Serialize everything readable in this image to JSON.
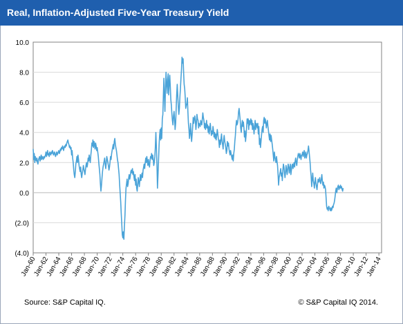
{
  "title": "Real, Inflation-Adjusted  Five-Year Treasury Yield",
  "source": "Source: S&P Capital IQ.",
  "copyright": "© S&P Capital IQ  2014.",
  "colors": {
    "title_bg": "#1f5fae",
    "line": "#4aa3d8",
    "grid": "#d9d9d9",
    "axis": "#808080"
  },
  "chart_data": {
    "type": "line",
    "title": "Real, Inflation-Adjusted  Five-Year Treasury Yield",
    "xlabel": "",
    "ylabel": "",
    "ylim": [
      -4,
      10
    ],
    "xlim": [
      "Jan-60",
      "Jun-14"
    ],
    "grid": true,
    "legend": "none",
    "y_ticks": [
      "10.0",
      "8.0",
      "6.0",
      "4.0",
      "2.0",
      "0.0",
      "(2.0)",
      "(4.0)"
    ],
    "x_ticks": [
      "Jan-60",
      "Jan-62",
      "Jan-64",
      "Jan-66",
      "Jan-68",
      "Jan-70",
      "Jan-72",
      "Jan-74",
      "Jan-76",
      "Jan-78",
      "Jan-80",
      "Jan-82",
      "Jan-84",
      "Jan-86",
      "Jan-88",
      "Jan-90",
      "Jan-92",
      "Jan-94",
      "Jan-96",
      "Jan-98",
      "Jan-00",
      "Jan-02",
      "Jan-04",
      "Jan-06",
      "Jan-08",
      "Jan-10",
      "Jan-12",
      "Jan-14"
    ],
    "series": [
      {
        "values_from": "Jan-60",
        "step": "month",
        "values": [
          2.9,
          2.2,
          2.6,
          2.0,
          2.4,
          2.2,
          2.1,
          2.3,
          2.0,
          1.9,
          2.2,
          2.3,
          2.4,
          2.1,
          2.3,
          2.5,
          2.2,
          2.4,
          2.3,
          2.2,
          2.4,
          2.3,
          2.4,
          2.5,
          2.7,
          2.4,
          2.6,
          2.8,
          2.5,
          2.6,
          2.4,
          2.7,
          2.6,
          2.5,
          2.7,
          2.6,
          2.8,
          2.7,
          2.5,
          2.6,
          2.7,
          2.5,
          2.4,
          2.6,
          2.7,
          2.5,
          2.6,
          2.7,
          2.8,
          2.6,
          2.7,
          2.9,
          2.8,
          3.0,
          2.9,
          3.1,
          3.0,
          2.8,
          3.0,
          3.1,
          3.0,
          3.2,
          3.1,
          3.3,
          3.4,
          3.5,
          3.3,
          3.2,
          3.0,
          3.1,
          2.9,
          3.0,
          2.5,
          2.8,
          2.3,
          2.0,
          1.5,
          1.2,
          1.0,
          1.4,
          1.9,
          2.1,
          2.4,
          2.0,
          2.5,
          2.2,
          1.8,
          1.6,
          1.4,
          1.7,
          1.2,
          1.0,
          1.3,
          1.5,
          1.8,
          1.6,
          1.4,
          1.2,
          1.5,
          1.8,
          2.0,
          1.7,
          1.9,
          2.3,
          2.1,
          2.5,
          2.2,
          2.0,
          2.5,
          2.8,
          3.3,
          3.1,
          3.5,
          3.0,
          3.4,
          3.2,
          2.9,
          3.3,
          3.1,
          2.8,
          3.0,
          2.7,
          2.4,
          2.0,
          1.6,
          1.2,
          0.6,
          0.1,
          0.5,
          1.0,
          1.4,
          1.7,
          1.9,
          2.1,
          2.3,
          1.9,
          1.6,
          2.0,
          2.4,
          2.2,
          2.0,
          1.8,
          1.5,
          1.7,
          2.0,
          2.4,
          2.2,
          2.6,
          2.8,
          3.0,
          3.2,
          2.9,
          3.4,
          3.6,
          3.2,
          3.0,
          2.8,
          2.5,
          2.2,
          2.0,
          1.6,
          1.2,
          0.6,
          0.0,
          -0.6,
          -1.4,
          -2.0,
          -2.8,
          -3.0,
          -2.6,
          -3.1,
          -2.2,
          -1.5,
          -0.5,
          0.3,
          0.6,
          0.9,
          0.4,
          0.6,
          1.0,
          1.2,
          0.9,
          1.1,
          1.4,
          1.5,
          1.3,
          1.6,
          1.2,
          1.4,
          1.0,
          0.8,
          1.2,
          0.5,
          0.9,
          0.3,
          0.1,
          0.6,
          1.0,
          0.7,
          0.4,
          0.9,
          1.2,
          0.8,
          1.1,
          1.3,
          1.0,
          1.5,
          1.7,
          1.9,
          1.6,
          2.0,
          2.3,
          2.0,
          2.4,
          2.1,
          1.8,
          2.2,
          1.9,
          1.7,
          2.1,
          2.4,
          2.3,
          2.6,
          2.2,
          2.5,
          2.2,
          1.8,
          2.0,
          2.4,
          3.0,
          4.0,
          3.0,
          1.8,
          0.3,
          1.2,
          2.2,
          3.2,
          3.8,
          4.2,
          3.5,
          4.3,
          3.6,
          4.9,
          5.2,
          6.4,
          7.6,
          6.3,
          5.4,
          7.0,
          8.0,
          7.1,
          6.6,
          7.5,
          7.9,
          6.5,
          7.2,
          7.8,
          7.0,
          6.2,
          5.8,
          5.2,
          4.8,
          4.5,
          5.1,
          5.4,
          4.9,
          4.2,
          4.6,
          5.5,
          6.5,
          7.2,
          6.4,
          5.8,
          5.2,
          5.6,
          6.4,
          6.9,
          7.6,
          8.2,
          9.0,
          8.6,
          8.9,
          7.9,
          7.2,
          6.9,
          6.3,
          5.6,
          5.8,
          5.9,
          6.3,
          5.4,
          4.6,
          4.2,
          3.6,
          4.0,
          4.6,
          3.8,
          3.4,
          3.9,
          4.4,
          5.0,
          4.6,
          4.9,
          5.1,
          4.8,
          4.2,
          4.6,
          5.2,
          4.9,
          4.8,
          4.3,
          4.6,
          4.5,
          4.4,
          4.8,
          4.6,
          4.5,
          4.9,
          5.3,
          5.0,
          4.8,
          4.3,
          4.6,
          4.2,
          4.4,
          4.8,
          4.3,
          4.5,
          4.0,
          4.4,
          3.9,
          4.3,
          4.6,
          4.2,
          3.8,
          4.1,
          3.9,
          4.4,
          4.1,
          3.7,
          4.0,
          3.6,
          3.9,
          3.5,
          3.8,
          4.2,
          3.9,
          3.6,
          3.4,
          3.0,
          3.5,
          3.2,
          3.6,
          3.9,
          3.4,
          3.2,
          2.9,
          3.5,
          3.8,
          3.4,
          3.2,
          3.0,
          2.6,
          2.8,
          3.4,
          3.1,
          3.3,
          2.9,
          2.7,
          2.5,
          2.8,
          2.6,
          2.4,
          2.2,
          2.5,
          2.1,
          2.6,
          2.9,
          3.4,
          3.8,
          4.4,
          4.8,
          4.5,
          4.6,
          4.9,
          5.4,
          5.6,
          5.2,
          4.8,
          4.3,
          4.0,
          4.5,
          4.8,
          4.4,
          4.7,
          4.3,
          3.7,
          4.1,
          3.4,
          3.8,
          4.3,
          4.9,
          4.6,
          4.9,
          4.2,
          4.8,
          4.5,
          4.7,
          4.9,
          4.5,
          4.8,
          4.2,
          4.6,
          4.3,
          3.9,
          4.4,
          4.8,
          4.2,
          4.6,
          4.5,
          4.3,
          4.6,
          3.9,
          4.4,
          3.2,
          3.6,
          3.0,
          3.4,
          3.8,
          4.2,
          4.4,
          4.0,
          4.8,
          5.0,
          4.6,
          4.9,
          4.7,
          4.3,
          4.6,
          4.8,
          4.4,
          4.1,
          3.8,
          3.5,
          3.9,
          3.4,
          3.8,
          3.5,
          3.2,
          2.9,
          2.5,
          2.1,
          2.7,
          2.4,
          2.2,
          2.0,
          2.4,
          2.1,
          1.8,
          1.2,
          0.5,
          1.0,
          1.2,
          1.4,
          1.6,
          1.1,
          1.3,
          0.8,
          1.5,
          1.9,
          1.7,
          1.3,
          1.0,
          1.4,
          1.8,
          1.5,
          1.2,
          1.6,
          1.9,
          1.7,
          1.3,
          1.6,
          1.9,
          1.2,
          1.5,
          1.8,
          1.9,
          1.6,
          1.8,
          2.0,
          1.7,
          2.1,
          2.3,
          2.0,
          1.8,
          2.2,
          2.4,
          2.6,
          2.5,
          2.3,
          2.6,
          2.4,
          2.2,
          2.5,
          2.5,
          2.7,
          2.4,
          2.6,
          2.8,
          2.3,
          2.5,
          2.7,
          2.3,
          2.5,
          2.6,
          2.8,
          3.1,
          2.8,
          2.4,
          2.0,
          1.5,
          1.1,
          0.4,
          0.9,
          1.3,
          0.8,
          0.6,
          0.3,
          0.7,
          1.0,
          0.6,
          0.4,
          0.2,
          0.6,
          0.9,
          0.7,
          0.8,
          1.0,
          0.7,
          0.6,
          0.9,
          1.2,
          0.8,
          0.5,
          0.7,
          0.3,
          0.5,
          0.4,
          0.2,
          -0.3,
          -0.9,
          -1.1,
          -1.0,
          -1.2,
          -0.9,
          -1.0,
          -1.1,
          -1.2,
          -1.0,
          -1.2,
          -1.1,
          -0.9,
          -1.0,
          -0.8,
          -0.7,
          -0.5,
          -0.2,
          0.1,
          0.3,
          0.0,
          0.2,
          0.4,
          0.5,
          0.2,
          0.4,
          0.3,
          0.5,
          0.3,
          0.4,
          0.2,
          0.1,
          0.3
        ]
      }
    ]
  }
}
